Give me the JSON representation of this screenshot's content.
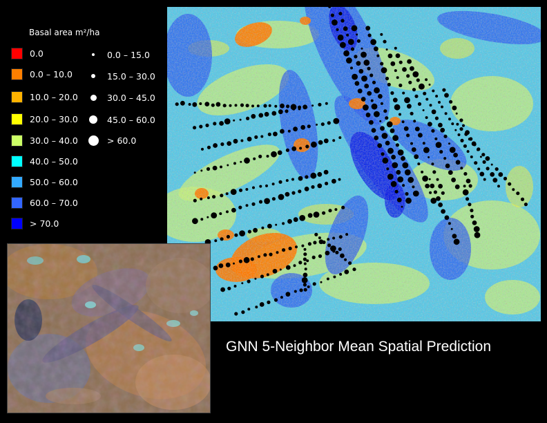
{
  "legend": {
    "title": "Basal area m²/ha",
    "classes": [
      {
        "label": "0.0",
        "color": "#ff0000"
      },
      {
        "label": "0.0 – 10.0",
        "color": "#ff7f00"
      },
      {
        "label": "10.0 – 20.0",
        "color": "#ffb300"
      },
      {
        "label": "20.0 – 30.0",
        "color": "#ffff00"
      },
      {
        "label": "30.0 – 40.0",
        "color": "#ccff66"
      },
      {
        "label": "40.0 – 50.0",
        "color": "#00ffff"
      },
      {
        "label": "50.0 – 60.0",
        "color": "#33aaff"
      },
      {
        "label": "60.0 – 70.0",
        "color": "#3366ff"
      },
      {
        "label": "> 70.0",
        "color": "#0000ff"
      }
    ],
    "plot_sizes": [
      {
        "label": "0.0 – 15.0"
      },
      {
        "label": "15.0 – 30.0"
      },
      {
        "label": "30.0 – 45.0"
      },
      {
        "label": "45.0 – 60.0"
      },
      {
        "label": "> 60.0"
      }
    ]
  },
  "caption": "GNN 5-Neighbor Mean Spatial Prediction",
  "colors": {
    "background": "#000000",
    "plot_marker": "#000000",
    "legend_marker": "#ffffff"
  }
}
